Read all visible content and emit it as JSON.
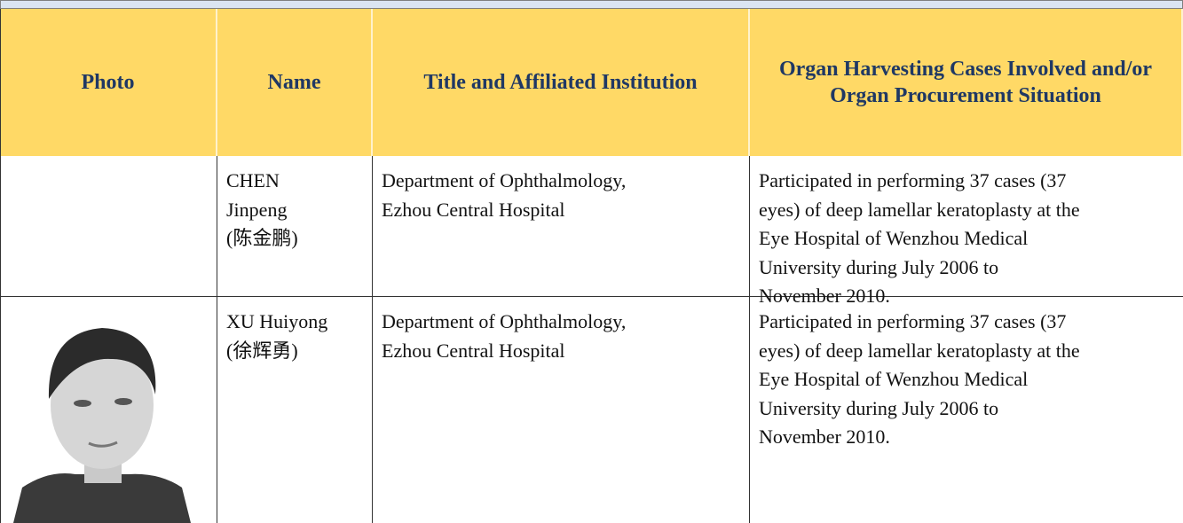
{
  "table": {
    "headers": [
      "Photo",
      "Name",
      "Title and Affiliated Institution",
      "Organ Harvesting Cases Involved and/or Organ Procurement Situation"
    ],
    "rows": [
      {
        "name_lines": [
          "CHEN",
          "Jinpeng",
          "(陈金鹏)"
        ],
        "institution_lines": [
          "Department of Ophthalmology,",
          "Ezhou Central Hospital"
        ],
        "situation_lines": [
          "Participated in performing 37 cases (37",
          "eyes) of deep lamellar keratoplasty at the",
          "Eye Hospital of Wenzhou Medical",
          "University during July 2006 to",
          "November 2010."
        ]
      },
      {
        "name_lines": [
          "XU Huiyong",
          "(徐辉勇)"
        ],
        "institution_lines": [
          "Department of Ophthalmology,",
          "Ezhou Central Hospital"
        ],
        "situation_lines": [
          "Participated in performing 37 cases (37",
          "eyes) of deep lamellar keratoplasty at the",
          "Eye Hospital of Wenzhou Medical",
          "University during July 2006 to",
          "November 2010."
        ]
      }
    ]
  }
}
